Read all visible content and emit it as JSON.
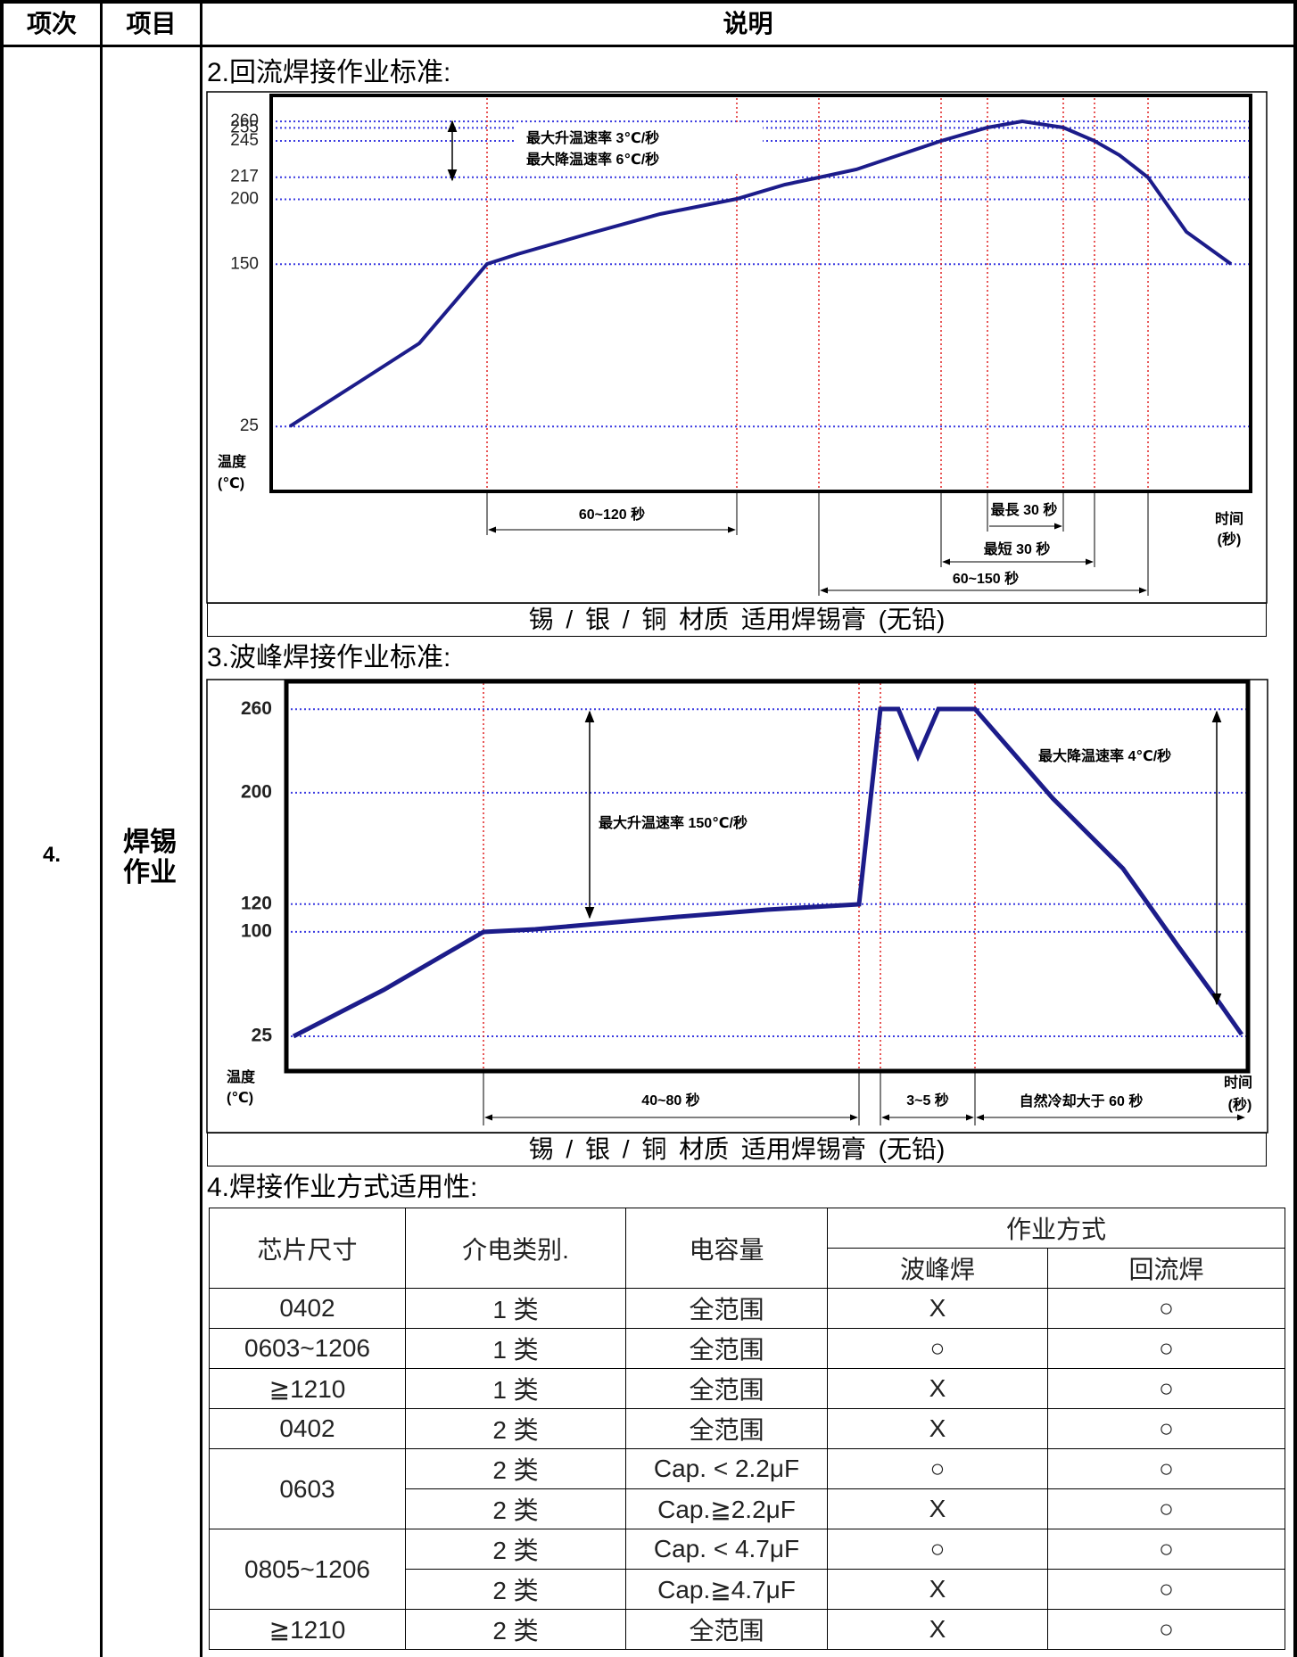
{
  "header": {
    "columns": [
      "项次",
      "项目",
      "说明"
    ]
  },
  "item": {
    "number": "4.",
    "name": "焊锡作业"
  },
  "sections": [
    {
      "title": "2.回流焊接作业标准:",
      "chart": {
        "yticks": [
          25,
          150,
          200,
          217,
          245,
          255,
          260
        ],
        "ylim": [
          -25,
          280
        ],
        "y_label": [
          "温度",
          "(℃)"
        ],
        "x_label": [
          "时间",
          "(秒)"
        ],
        "annotations": [
          "最大升温速率 3℃/秒",
          "最大降温速率 6℃/秒"
        ],
        "intervals": [
          "60~120 秒",
          "最長 30 秒",
          "最短 30 秒",
          "60~150 秒"
        ]
      },
      "caption": "锡 / 银 / 铜 材质 适用焊锡膏 (无铅)"
    },
    {
      "title": "3.波峰焊接作业标准:",
      "chart": {
        "yticks": [
          25,
          100,
          120,
          200,
          260
        ],
        "ylim": [
          0,
          280
        ],
        "y_label": [
          "温度",
          "(℃)"
        ],
        "x_label": [
          "时间",
          "(秒)"
        ],
        "annotations": [
          "最大升温速率 150℃/秒",
          "最大降温速率 4℃/秒"
        ],
        "intervals": [
          "40~80 秒",
          "3~5 秒",
          "自然冷却大于 60 秒"
        ]
      },
      "caption": "锡 / 银 / 铜 材质 适用焊锡膏 (无铅)"
    },
    {
      "title": "4.焊接作业方式适用性:",
      "table": {
        "header": [
          "芯片尺寸",
          "介电类别.",
          "电容量",
          "作业方式"
        ],
        "subheader": [
          "波峰焊",
          "回流焊"
        ],
        "rows": [
          [
            "0402",
            "1 类",
            "全范围",
            "X",
            "○"
          ],
          [
            "0603~1206",
            "1 类",
            "全范围",
            "○",
            "○"
          ],
          [
            "≧1210",
            "1 类",
            "全范围",
            "X",
            "○"
          ],
          [
            "0402",
            "2 类",
            "全范围",
            "X",
            "○"
          ],
          [
            "0603",
            "2 类",
            "Cap. < 2.2μF",
            "○",
            "○"
          ],
          [
            "2 类",
            "Cap.≧2.2μF",
            "X",
            "○"
          ],
          [
            "0805~1206",
            "2 类",
            "Cap. < 4.7μF",
            "○",
            "○"
          ],
          [
            "2 类",
            "Cap.≧4.7μF",
            "X",
            "○"
          ],
          [
            "≧1210",
            "2 类",
            "全范围",
            "X",
            "○"
          ]
        ]
      }
    }
  ]
}
